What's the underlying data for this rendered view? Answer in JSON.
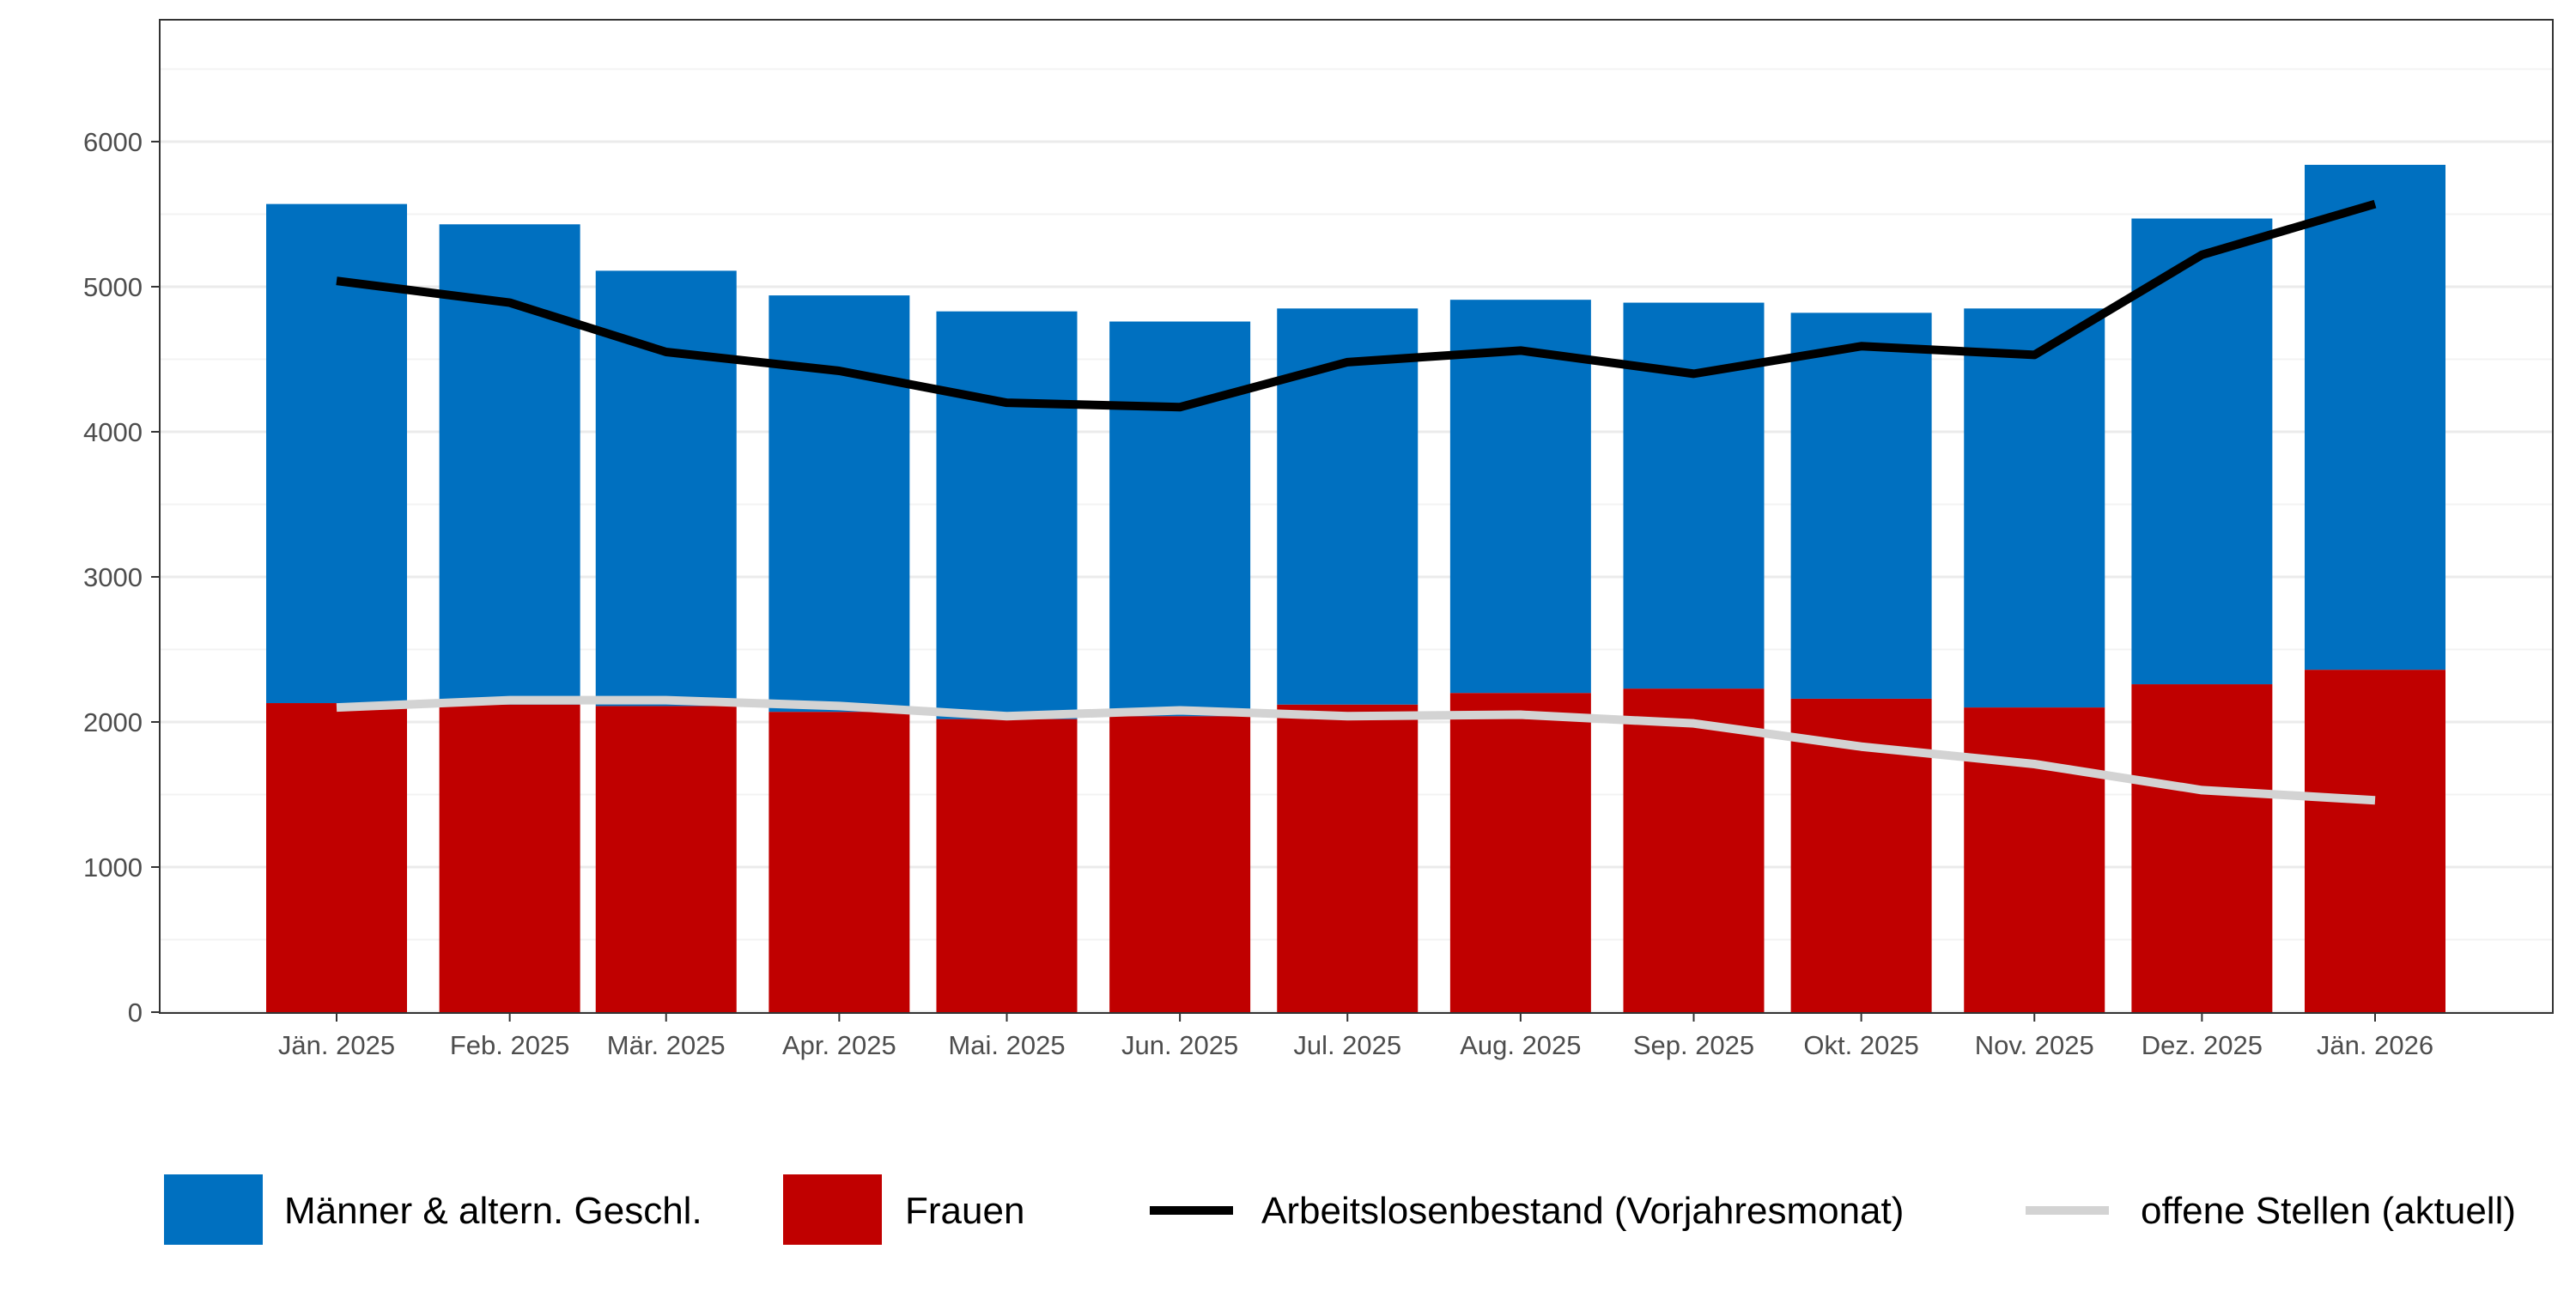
{
  "chart_data": {
    "type": "bar",
    "stacked": true,
    "categories": [
      "Jän. 2025",
      "Feb. 2025",
      "Mär. 2025",
      "Apr. 2025",
      "Mai. 2025",
      "Jun. 2025",
      "Jul. 2025",
      "Aug. 2025",
      "Sep. 2025",
      "Okt. 2025",
      "Nov. 2025",
      "Dez. 2025",
      "Jän. 2026"
    ],
    "x": [
      "2025-01-01",
      "2025-02-01",
      "2025-03-01",
      "2025-04-01",
      "2025-05-01",
      "2025-06-01",
      "2025-07-01",
      "2025-08-01",
      "2025-09-01",
      "2025-10-01",
      "2025-11-01",
      "2025-12-01",
      "2026-01-01"
    ],
    "series": [
      {
        "name": "Frauen",
        "type": "bar",
        "color": "#C00000",
        "values": [
          2130,
          2120,
          2110,
          2070,
          2020,
          2040,
          2120,
          2200,
          2230,
          2160,
          2100,
          2260,
          2360
        ]
      },
      {
        "name": "Männer & altern. Geschl.",
        "type": "bar",
        "color": "#0070C0",
        "values": [
          3440,
          3310,
          3000,
          2870,
          2810,
          2720,
          2730,
          2710,
          2660,
          2660,
          2750,
          3210,
          3480
        ]
      },
      {
        "name": "Arbeitslosenbestand (Vorjahresmonat)",
        "type": "line",
        "color": "#000000",
        "values": [
          5040,
          4890,
          4550,
          4420,
          4200,
          4170,
          4480,
          4560,
          4400,
          4590,
          4530,
          5220,
          5570
        ]
      },
      {
        "name": "offene Stellen (aktuell)",
        "type": "line",
        "color": "#D3D3D3",
        "values": [
          2100,
          2150,
          2150,
          2110,
          2040,
          2080,
          2040,
          2050,
          1990,
          1830,
          1710,
          1530,
          1460
        ]
      }
    ],
    "yticks": [
      "0",
      "1000",
      "2000",
      "3000",
      "4000",
      "5000",
      "6000"
    ],
    "ylim": [
      0,
      6840
    ],
    "grid": true,
    "legend_position": "bottom",
    "legend": [
      {
        "label": "Männer & altern. Geschl.",
        "kind": "fill",
        "color": "#0070C0"
      },
      {
        "label": "Frauen",
        "kind": "fill",
        "color": "#C00000"
      },
      {
        "label": "Arbeitslosenbestand (Vorjahresmonat)",
        "kind": "line",
        "color": "#000000"
      },
      {
        "label": "offene Stellen (aktuell)",
        "kind": "line",
        "color": "#D3D3D3"
      }
    ]
  }
}
